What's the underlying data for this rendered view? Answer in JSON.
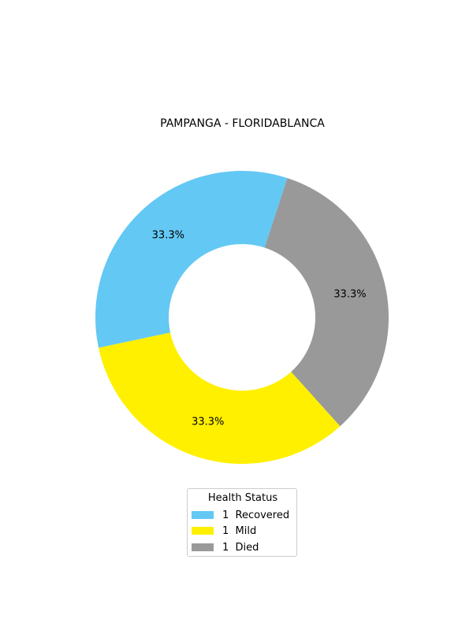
{
  "chart_data": {
    "type": "pie",
    "donut": true,
    "title": "PAMPANGA - FLORIDABLANCA",
    "categories": [
      "Recovered",
      "Mild",
      "Died"
    ],
    "values": [
      1,
      1,
      1
    ],
    "percent_labels": [
      "33.3%",
      "33.3%",
      "33.3%"
    ],
    "colors": [
      "#63c8f3",
      "#fff000",
      "#999999"
    ],
    "legend": {
      "title": "Health Status",
      "placement": "bottom-center",
      "entries": [
        "1  Recovered",
        "1  Mild",
        "1  Died"
      ]
    }
  }
}
